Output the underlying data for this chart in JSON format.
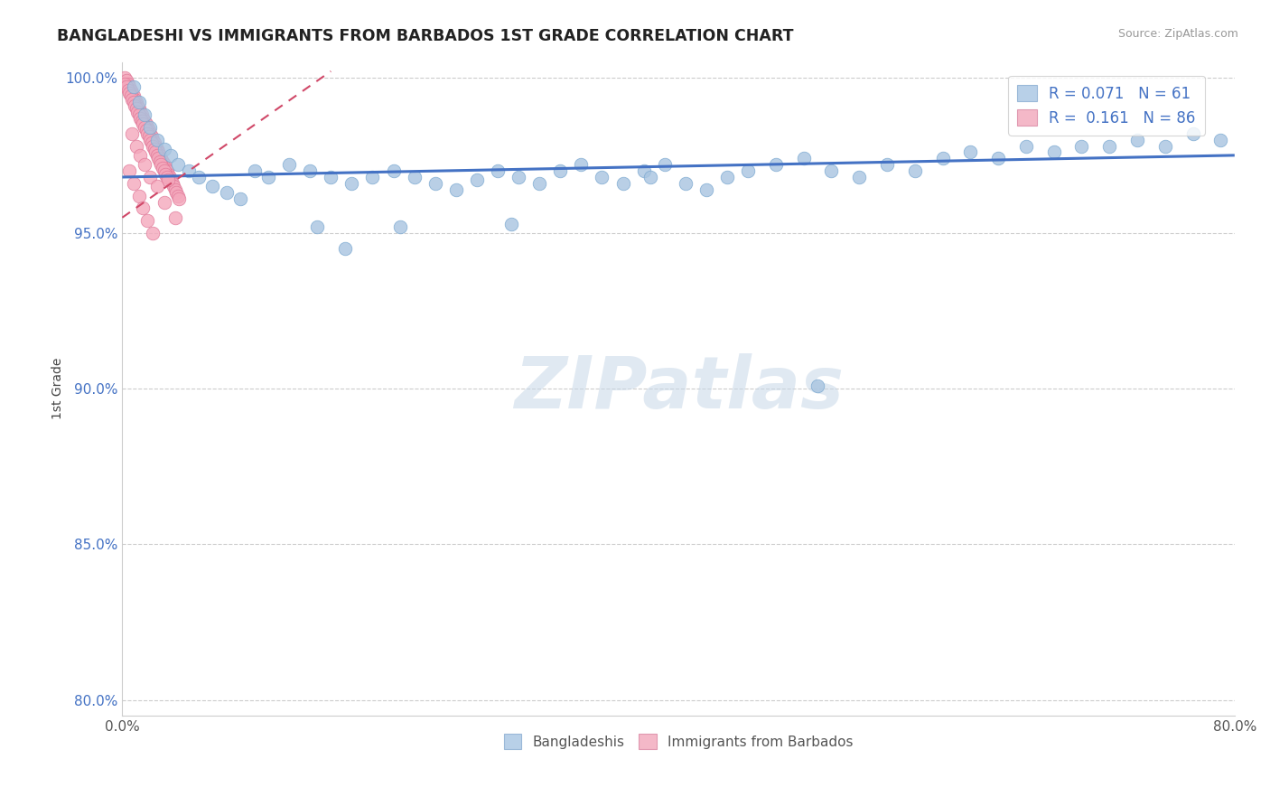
{
  "title": "BANGLADESHI VS IMMIGRANTS FROM BARBADOS 1ST GRADE CORRELATION CHART",
  "source": "Source: ZipAtlas.com",
  "ylabel": "1st Grade",
  "xlim": [
    0.0,
    0.8
  ],
  "ylim": [
    0.795,
    1.005
  ],
  "x_ticks": [
    0.0,
    0.2,
    0.4,
    0.6,
    0.8
  ],
  "x_tick_labels": [
    "0.0%",
    "",
    "",
    "",
    "80.0%"
  ],
  "y_ticks": [
    0.8,
    0.85,
    0.9,
    0.95,
    1.0
  ],
  "y_tick_labels": [
    "80.0%",
    "85.0%",
    "90.0%",
    "95.0%",
    "100.0%"
  ],
  "watermark": "ZIPatlas",
  "blue_R": 0.071,
  "blue_N": 61,
  "pink_R": 0.161,
  "pink_N": 86,
  "blue_dot_color": "#a8c4e0",
  "blue_dot_edge": "#7aa8d0",
  "pink_dot_color": "#f4a8bc",
  "pink_dot_edge": "#e07898",
  "blue_line_color": "#4472c4",
  "pink_line_color": "#d04868",
  "legend_blue_fill": "#b8d0e8",
  "legend_pink_fill": "#f4b8c8",
  "tick_color": "#4472c4",
  "title_color": "#222222",
  "ylabel_color": "#444444",
  "grid_color": "#cccccc",
  "blue_scatter_x": [
    0.008,
    0.012,
    0.016,
    0.02,
    0.025,
    0.03,
    0.035,
    0.04,
    0.048,
    0.055,
    0.065,
    0.075,
    0.085,
    0.095,
    0.105,
    0.12,
    0.135,
    0.15,
    0.165,
    0.18,
    0.195,
    0.21,
    0.225,
    0.24,
    0.255,
    0.27,
    0.285,
    0.3,
    0.315,
    0.33,
    0.345,
    0.36,
    0.375,
    0.39,
    0.405,
    0.42,
    0.435,
    0.45,
    0.47,
    0.49,
    0.51,
    0.53,
    0.55,
    0.57,
    0.59,
    0.61,
    0.63,
    0.65,
    0.67,
    0.69,
    0.71,
    0.73,
    0.75,
    0.77,
    0.79,
    0.14,
    0.2,
    0.16,
    0.28,
    0.38,
    0.5
  ],
  "blue_scatter_y": [
    0.997,
    0.992,
    0.988,
    0.984,
    0.98,
    0.977,
    0.975,
    0.972,
    0.97,
    0.968,
    0.965,
    0.963,
    0.961,
    0.97,
    0.968,
    0.972,
    0.97,
    0.968,
    0.966,
    0.968,
    0.97,
    0.968,
    0.966,
    0.964,
    0.967,
    0.97,
    0.968,
    0.966,
    0.97,
    0.972,
    0.968,
    0.966,
    0.97,
    0.972,
    0.966,
    0.964,
    0.968,
    0.97,
    0.972,
    0.974,
    0.97,
    0.968,
    0.972,
    0.97,
    0.974,
    0.976,
    0.974,
    0.978,
    0.976,
    0.978,
    0.978,
    0.98,
    0.978,
    0.982,
    0.98,
    0.952,
    0.952,
    0.945,
    0.953,
    0.968,
    0.901
  ],
  "pink_scatter_x": [
    0.002,
    0.003,
    0.004,
    0.005,
    0.006,
    0.007,
    0.008,
    0.009,
    0.01,
    0.011,
    0.012,
    0.013,
    0.014,
    0.015,
    0.016,
    0.017,
    0.018,
    0.019,
    0.02,
    0.021,
    0.022,
    0.023,
    0.024,
    0.025,
    0.026,
    0.027,
    0.028,
    0.029,
    0.03,
    0.031,
    0.032,
    0.033,
    0.034,
    0.035,
    0.036,
    0.037,
    0.038,
    0.039,
    0.04,
    0.041,
    0.002,
    0.003,
    0.004,
    0.005,
    0.006,
    0.007,
    0.008,
    0.009,
    0.01,
    0.011,
    0.012,
    0.013,
    0.014,
    0.015,
    0.016,
    0.017,
    0.018,
    0.019,
    0.02,
    0.021,
    0.022,
    0.023,
    0.024,
    0.025,
    0.026,
    0.027,
    0.028,
    0.029,
    0.03,
    0.031,
    0.032,
    0.033,
    0.007,
    0.01,
    0.013,
    0.016,
    0.02,
    0.025,
    0.03,
    0.038,
    0.005,
    0.008,
    0.012,
    0.015,
    0.018,
    0.022
  ],
  "pink_scatter_y": [
    1.0,
    0.999,
    0.998,
    0.997,
    0.996,
    0.995,
    0.994,
    0.993,
    0.992,
    0.991,
    0.99,
    0.989,
    0.988,
    0.987,
    0.986,
    0.985,
    0.984,
    0.983,
    0.982,
    0.981,
    0.98,
    0.979,
    0.978,
    0.977,
    0.976,
    0.975,
    0.974,
    0.973,
    0.972,
    0.971,
    0.97,
    0.969,
    0.968,
    0.967,
    0.966,
    0.965,
    0.964,
    0.963,
    0.962,
    0.961,
    0.998,
    0.997,
    0.996,
    0.995,
    0.994,
    0.993,
    0.992,
    0.991,
    0.99,
    0.989,
    0.988,
    0.987,
    0.986,
    0.985,
    0.984,
    0.983,
    0.982,
    0.981,
    0.98,
    0.979,
    0.978,
    0.977,
    0.976,
    0.975,
    0.974,
    0.973,
    0.972,
    0.971,
    0.97,
    0.969,
    0.968,
    0.967,
    0.982,
    0.978,
    0.975,
    0.972,
    0.968,
    0.965,
    0.96,
    0.955,
    0.97,
    0.966,
    0.962,
    0.958,
    0.954,
    0.95
  ]
}
